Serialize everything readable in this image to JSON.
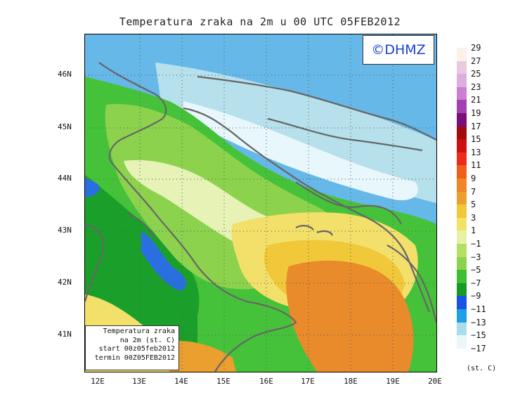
{
  "title": "Temperatura zraka na 2m u 00 UTC 05FEB2012",
  "logo": "©DHMZ",
  "info_box": {
    "line1": "Temperatura zraka",
    "line2": "na 2m (st. C)",
    "line3": "start 00z05feb2012",
    "line4": "termin 00Z05FEB2012"
  },
  "lat_labels": [
    "46N",
    "45N",
    "44N",
    "43N",
    "42N",
    "41N"
  ],
  "lon_labels": [
    "12E",
    "13E",
    "14E",
    "15E",
    "16E",
    "17E",
    "18E",
    "19E",
    "20E"
  ],
  "legend": {
    "unit": "(st. C)",
    "labels": [
      "29",
      "27",
      "25",
      "23",
      "21",
      "19",
      "17",
      "15",
      "13",
      "11",
      "9",
      "7",
      "5",
      "3",
      "1",
      "−1",
      "−3",
      "−5",
      "−7",
      "−9",
      "−11",
      "−13",
      "−15",
      "−17"
    ],
    "colors": [
      "#fdf0e8",
      "#e9c9e0",
      "#ddaedf",
      "#cc7fd0",
      "#a441b0",
      "#7a0f7a",
      "#a00d0d",
      "#cc1111",
      "#ee2a1a",
      "#f05f1a",
      "#f0852a",
      "#ea9f2f",
      "#f0c83a",
      "#f3e364",
      "#e6f2a6",
      "#b3e063",
      "#8cd24d",
      "#3fbe34",
      "#169a26",
      "#1b53e6",
      "#1fa0e6",
      "#a9dde9",
      "#e9f7fb"
    ]
  },
  "map_colors": {
    "sea_deep": "#66b8e8",
    "blue_cold": "#2a6fe0",
    "snow": "#e8f7fb",
    "icy": "#b6e0ec",
    "green_dark": "#1aa02a",
    "green": "#46c23a",
    "green_light": "#8cd24d",
    "yellow_green": "#cdeb8a",
    "pale": "#e6f2b6",
    "yellow": "#f3e06a",
    "gold": "#f0c83a",
    "orange": "#ea9f2f",
    "orange_dark": "#e98a2b",
    "coast": "#666666"
  }
}
